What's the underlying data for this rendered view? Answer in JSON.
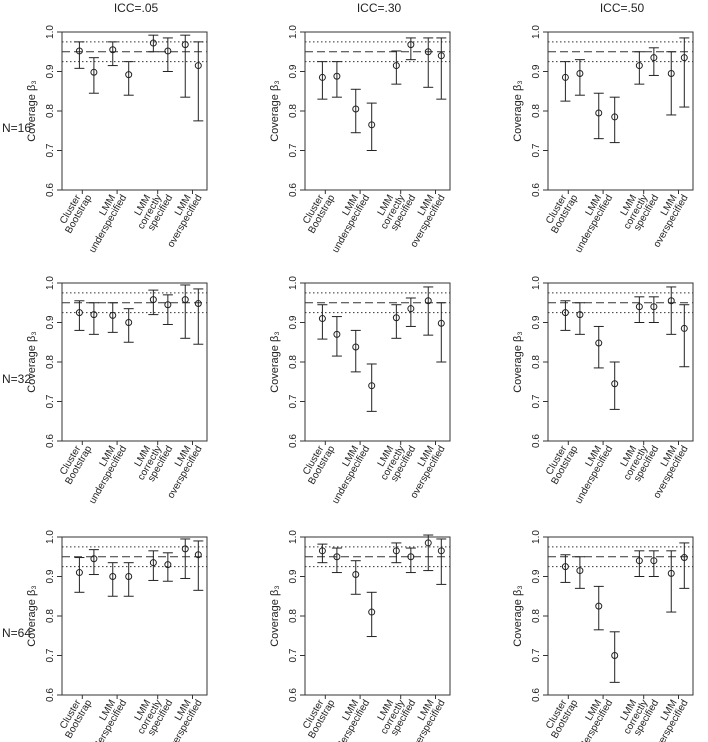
{
  "chart_data": {
    "type": "scatter",
    "description_type": "point estimates with confidence intervals, 3x3 panel grid",
    "columns": [
      "ICC=.05",
      "ICC=.30",
      "ICC=.50"
    ],
    "rows": [
      "N=16",
      "N=32",
      "N=64"
    ],
    "ylabel": "Coverage β₃",
    "ylim": [
      0.6,
      1.0
    ],
    "yticks": [
      "0.6",
      "0.7",
      "0.8",
      "0.9",
      "1.0"
    ],
    "x_groups": [
      [
        "Cluster",
        "Bootstrap"
      ],
      [
        "LMM",
        "underspecified"
      ],
      [
        "LMM",
        "correctly",
        "specified"
      ],
      [
        "LMM",
        "overspecified"
      ]
    ],
    "reference_lines": {
      "dashed": 0.95,
      "dotted": [
        0.925,
        0.975
      ]
    },
    "panels": [
      {
        "row": 0,
        "col": 0,
        "points": [
          [
            0.952,
            0.908,
            0.975
          ],
          [
            0.898,
            0.845,
            0.935
          ],
          [
            0.955,
            0.915,
            0.975
          ],
          [
            0.892,
            0.84,
            0.925
          ],
          [
            0.972,
            0.95,
            0.992
          ],
          [
            0.952,
            0.9,
            0.985
          ],
          [
            0.968,
            0.835,
            0.992
          ],
          [
            0.915,
            0.775,
            0.975
          ]
        ]
      },
      {
        "row": 0,
        "col": 1,
        "points": [
          [
            0.885,
            0.83,
            0.925
          ],
          [
            0.888,
            0.835,
            0.925
          ],
          [
            0.805,
            0.745,
            0.855
          ],
          [
            0.765,
            0.7,
            0.82
          ],
          [
            0.915,
            0.868,
            0.952
          ],
          [
            0.968,
            0.93,
            0.985
          ],
          [
            0.95,
            0.86,
            0.985
          ],
          [
            0.94,
            0.83,
            0.985
          ]
        ]
      },
      {
        "row": 0,
        "col": 2,
        "points": [
          [
            0.885,
            0.825,
            0.925
          ],
          [
            0.895,
            0.84,
            0.93
          ],
          [
            0.795,
            0.73,
            0.845
          ],
          [
            0.785,
            0.72,
            0.835
          ],
          [
            0.915,
            0.868,
            0.95
          ],
          [
            0.935,
            0.89,
            0.96
          ],
          [
            0.895,
            0.79,
            0.95
          ],
          [
            0.935,
            0.81,
            0.985
          ]
        ]
      },
      {
        "row": 1,
        "col": 0,
        "points": [
          [
            0.925,
            0.88,
            0.955
          ],
          [
            0.92,
            0.87,
            0.95
          ],
          [
            0.918,
            0.875,
            0.95
          ],
          [
            0.9,
            0.85,
            0.935
          ],
          [
            0.958,
            0.92,
            0.982
          ],
          [
            0.945,
            0.895,
            0.97
          ],
          [
            0.958,
            0.86,
            0.995
          ],
          [
            0.948,
            0.845,
            0.985
          ]
        ]
      },
      {
        "row": 1,
        "col": 1,
        "points": [
          [
            0.91,
            0.858,
            0.945
          ],
          [
            0.87,
            0.815,
            0.915
          ],
          [
            0.838,
            0.775,
            0.88
          ],
          [
            0.74,
            0.675,
            0.795
          ],
          [
            0.912,
            0.86,
            0.945
          ],
          [
            0.935,
            0.89,
            0.962
          ],
          [
            0.955,
            0.868,
            0.99
          ],
          [
            0.898,
            0.8,
            0.95
          ]
        ]
      },
      {
        "row": 1,
        "col": 2,
        "points": [
          [
            0.925,
            0.88,
            0.955
          ],
          [
            0.92,
            0.87,
            0.95
          ],
          [
            0.848,
            0.785,
            0.89
          ],
          [
            0.745,
            0.68,
            0.8
          ],
          [
            0.94,
            0.9,
            0.965
          ],
          [
            0.94,
            0.9,
            0.965
          ],
          [
            0.955,
            0.87,
            0.99
          ],
          [
            0.885,
            0.788,
            0.945
          ]
        ]
      },
      {
        "row": 2,
        "col": 0,
        "points": [
          [
            0.91,
            0.86,
            0.948
          ],
          [
            0.945,
            0.905,
            0.968
          ],
          [
            0.9,
            0.85,
            0.935
          ],
          [
            0.9,
            0.85,
            0.935
          ],
          [
            0.935,
            0.89,
            0.965
          ],
          [
            0.93,
            0.888,
            0.96
          ],
          [
            0.97,
            0.895,
            0.995
          ],
          [
            0.955,
            0.865,
            0.99
          ]
        ]
      },
      {
        "row": 2,
        "col": 1,
        "points": [
          [
            0.965,
            0.935,
            0.982
          ],
          [
            0.95,
            0.91,
            0.972
          ],
          [
            0.905,
            0.855,
            0.94
          ],
          [
            0.81,
            0.748,
            0.86
          ],
          [
            0.965,
            0.935,
            0.985
          ],
          [
            0.95,
            0.91,
            0.972
          ],
          [
            0.985,
            0.915,
            1.005
          ],
          [
            0.965,
            0.88,
            0.995
          ]
        ]
      },
      {
        "row": 2,
        "col": 2,
        "points": [
          [
            0.925,
            0.885,
            0.955
          ],
          [
            0.915,
            0.87,
            0.95
          ],
          [
            0.825,
            0.765,
            0.875
          ],
          [
            0.7,
            0.632,
            0.76
          ],
          [
            0.94,
            0.9,
            0.965
          ],
          [
            0.94,
            0.9,
            0.965
          ],
          [
            0.908,
            0.81,
            0.965
          ],
          [
            0.948,
            0.87,
            0.985
          ]
        ]
      }
    ]
  }
}
